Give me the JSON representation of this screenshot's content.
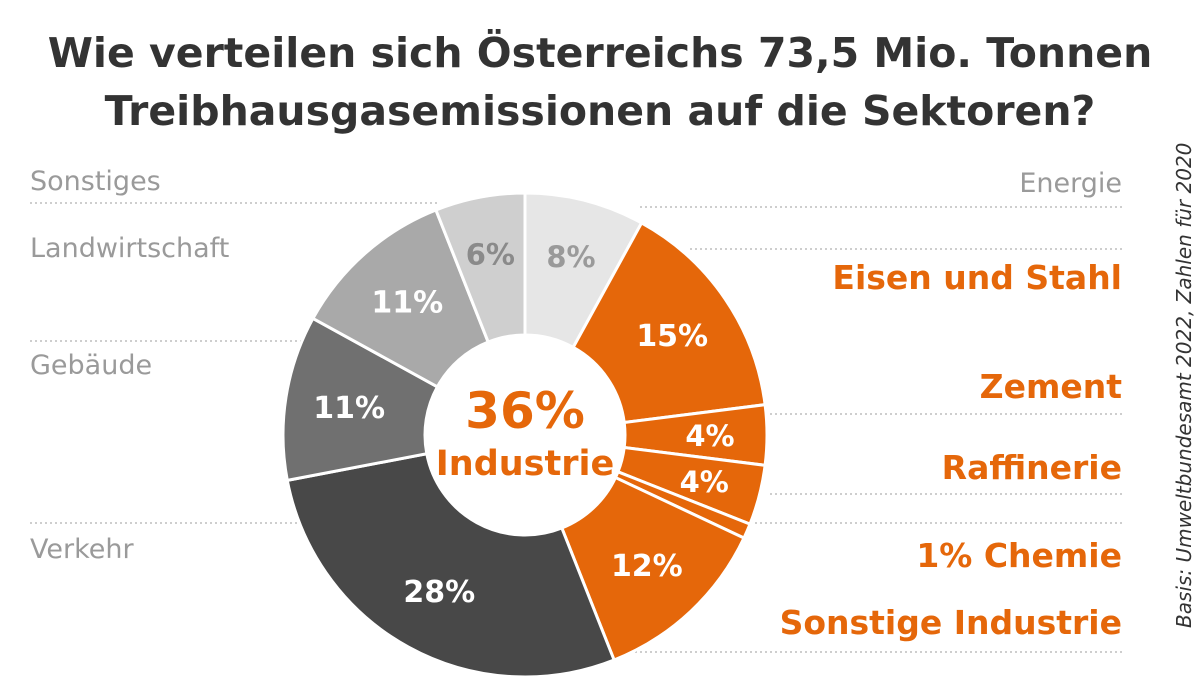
{
  "chart_data": {
    "type": "donut",
    "title_lines": [
      "Wie verteilen sich Österreichs 73,5 Mio. Tonnen",
      "Treibhausgasemissionen auf die Sektoren?"
    ],
    "center_value": "36%",
    "center_label": "Industrie",
    "source": "Basis: Umweltbundesamt 2022, Zahlen für 2020",
    "slices": [
      {
        "name": "Energie",
        "value": 8,
        "label": "8%",
        "color": "#e6e6e6",
        "label_color": "#9a9a9a",
        "group": "other"
      },
      {
        "name": "Eisen und Stahl",
        "value": 15,
        "label": "15%",
        "color": "#e5670a",
        "label_color": "#ffffff",
        "group": "Industrie"
      },
      {
        "name": "Zement",
        "value": 4,
        "label": "4%",
        "color": "#e5670a",
        "label_color": "#ffffff",
        "group": "Industrie"
      },
      {
        "name": "Raffinerie",
        "value": 4,
        "label": "4%",
        "color": "#e5670a",
        "label_color": "#ffffff",
        "group": "Industrie"
      },
      {
        "name": "Chemie",
        "value": 1,
        "label": "1%",
        "color": "#e5670a",
        "label_color": "#ffffff",
        "group": "Industrie"
      },
      {
        "name": "Sonstige Industrie",
        "value": 12,
        "label": "12%",
        "color": "#e5670a",
        "label_color": "#ffffff",
        "group": "Industrie"
      },
      {
        "name": "Verkehr",
        "value": 28,
        "label": "28%",
        "color": "#484848",
        "label_color": "#ffffff",
        "group": "other"
      },
      {
        "name": "Gebäude",
        "value": 11,
        "label": "11%",
        "color": "#707070",
        "label_color": "#ffffff",
        "group": "other"
      },
      {
        "name": "Landwirtschaft",
        "value": 11,
        "label": "11%",
        "color": "#a9a9a9",
        "label_color": "#ffffff",
        "group": "other"
      },
      {
        "name": "Sonstiges",
        "value": 6,
        "label": "6%",
        "color": "#cfcfcf",
        "label_color": "#8a8a8a",
        "group": "other"
      }
    ],
    "left_labels": [
      "Sonstiges",
      "Landwirtschaft",
      "Gebäude",
      "Verkehr"
    ],
    "right_labels": [
      "Energie"
    ],
    "industry_labels": [
      "Eisen und Stahl",
      "Zement",
      "Raffinerie",
      "1% Chemie",
      "Sonstige Industrie"
    ],
    "colors": {
      "industry": "#e5670a",
      "title": "#333333",
      "muted_label": "#9a9a9a",
      "separator": "#b0b0b0"
    }
  }
}
